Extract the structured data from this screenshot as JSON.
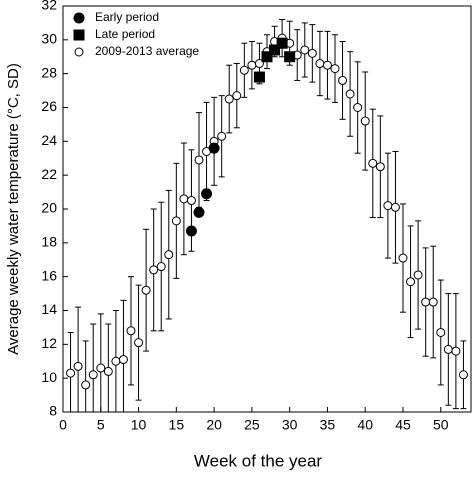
{
  "chart_data": {
    "type": "scatter",
    "xlabel": "Week of the year",
    "ylabel": "Average weekly water temperature (°C, SD)",
    "xlim": [
      0,
      54
    ],
    "xticks": [
      0,
      5,
      10,
      15,
      20,
      25,
      30,
      35,
      40,
      45,
      50
    ],
    "ylim": [
      8,
      32
    ],
    "yticks": [
      8,
      10,
      12,
      14,
      16,
      18,
      20,
      22,
      24,
      26,
      28,
      30,
      32
    ],
    "legend": "top-left",
    "series": [
      {
        "name": "Early period",
        "marker": "filled-circle",
        "color": "#000000",
        "x": [
          17,
          18,
          19,
          20
        ],
        "values": [
          18.7,
          19.8,
          20.9,
          23.6
        ]
      },
      {
        "name": "Late period",
        "marker": "filled-square",
        "color": "#000000",
        "x": [
          26,
          27,
          28,
          29,
          30
        ],
        "values": [
          27.8,
          29.0,
          29.4,
          29.8,
          29.0
        ]
      },
      {
        "name": "2009-2013 average",
        "marker": "open-circle",
        "color": "#000000",
        "x": [
          1,
          2,
          3,
          4,
          5,
          6,
          7,
          8,
          9,
          10,
          11,
          12,
          13,
          14,
          15,
          16,
          17,
          18,
          19,
          20,
          21,
          22,
          23,
          24,
          25,
          26,
          27,
          28,
          29,
          30,
          31,
          32,
          33,
          34,
          35,
          36,
          37,
          38,
          39,
          40,
          41,
          42,
          43,
          44,
          45,
          46,
          47,
          48,
          49,
          50,
          51,
          52,
          53
        ],
        "values": [
          10.3,
          10.7,
          9.6,
          10.2,
          10.6,
          10.4,
          11.0,
          11.1,
          12.8,
          12.1,
          15.2,
          16.4,
          16.6,
          17.3,
          19.3,
          20.6,
          20.5,
          22.9,
          23.4,
          24.0,
          24.3,
          26.5,
          26.7,
          28.2,
          28.5,
          28.6,
          29.3,
          29.9,
          30.1,
          29.8,
          29.1,
          29.4,
          29.2,
          28.6,
          28.5,
          28.3,
          27.6,
          26.8,
          26.0,
          25.2,
          22.7,
          22.5,
          20.2,
          20.1,
          17.1,
          15.7,
          16.1,
          14.5,
          14.5,
          12.7,
          11.7,
          11.6,
          10.2
        ],
        "errors": [
          2.4,
          3.5,
          2.6,
          3.0,
          3.2,
          2.8,
          3.0,
          3.5,
          3.2,
          3.4,
          3.6,
          3.6,
          3.8,
          3.8,
          3.4,
          3.3,
          3.0,
          2.8,
          2.9,
          2.6,
          2.4,
          2.0,
          1.9,
          1.6,
          1.4,
          1.2,
          1.0,
          0.9,
          1.1,
          1.3,
          1.5,
          1.6,
          1.7,
          1.9,
          2.0,
          2.0,
          2.3,
          2.5,
          2.7,
          2.9,
          3.2,
          3.0,
          3.1,
          3.3,
          3.2,
          3.3,
          3.2,
          3.2,
          3.3,
          3.1,
          3.3,
          3.4,
          2.0
        ]
      }
    ]
  }
}
